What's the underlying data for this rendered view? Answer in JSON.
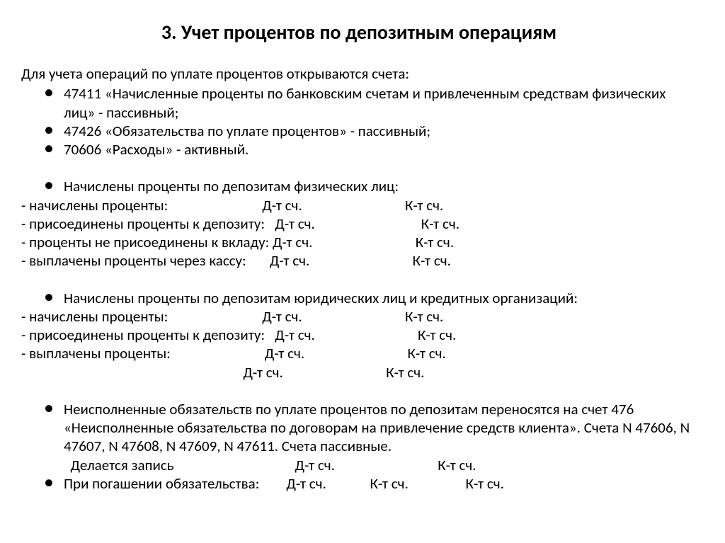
{
  "title": "3. Учет процентов по депозитным операциям",
  "intro": "Для учета операций по уплате процентов открываются счета:",
  "accounts": [
    "47411 «Начисленные проценты по банковским счетам и привлеченным средствам физических лиц» - пассивный;",
    "47426 «Обязательства по уплате процентов» - пассивный;",
    "70606 «Расходы» - активный."
  ],
  "section_phys_header": "Начислены проценты по депозитам физических лиц:",
  "dtk": {
    "d": "Д-т сч.",
    "k": "К-т сч."
  },
  "phys_rows": [
    {
      "label": "- начислены проценты:                            "
    },
    {
      "label": "- присоединены проценты к депозиту:   "
    },
    {
      "label": "- проценты не присоединены к вкладу: "
    },
    {
      "label": "- выплачены проценты через кассу:       "
    }
  ],
  "section_jur_header": "Начислены проценты по депозитам юридических лиц и кредитных организаций:",
  "jur_rows": [
    {
      "label": "- начислены проценты:                            "
    },
    {
      "label": "- присоединены проценты к депозиту:   "
    },
    {
      "label": "- выплачены проценты:                            "
    },
    {
      "label": "                                                                  "
    }
  ],
  "unfulfilled_bullet": "Неисполненные обязательств по уплате процентов по депозитам переносятся на счет 476 «Неисполненные обязательства по договорам на привлечение средств клиента». Счета N 47606, N 47607, N 47608, N 47609, N 47611. Счета пассивные.",
  "record_row": {
    "label": "  Делается запись                                    "
  },
  "repay_row": {
    "prefix": "При погашении обязательства:        ",
    "d": "Д-т сч.",
    "k1": "К-т сч.",
    "k2": "К-т сч."
  }
}
